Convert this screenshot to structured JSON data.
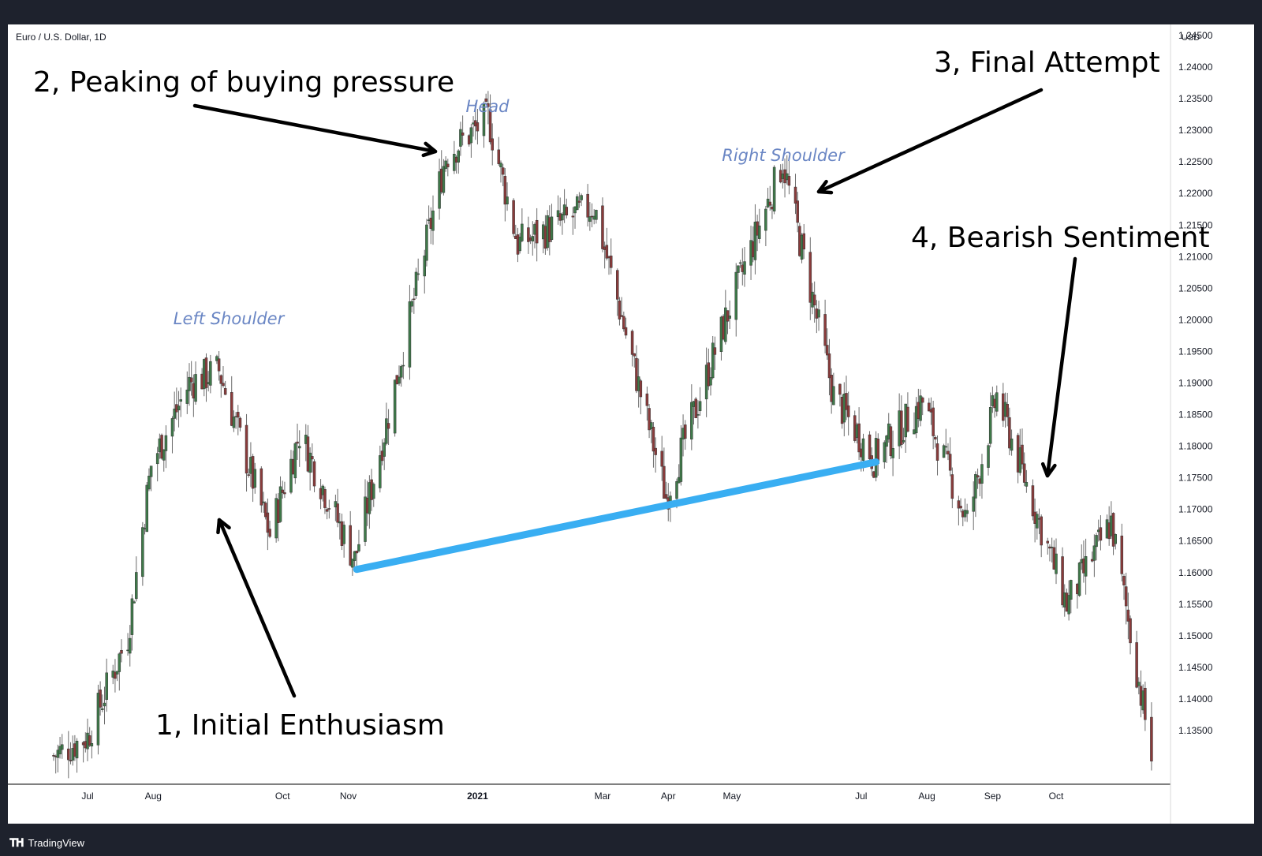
{
  "chart_data": {
    "type": "candlestick",
    "title": "Euro / U.S. Dollar, 1D",
    "currency_label": "USD",
    "ylim": [
      1.13,
      1.2475
    ],
    "y_ticks": [
      "1.24500",
      "1.24000",
      "1.23500",
      "1.23000",
      "1.22500",
      "1.22000",
      "1.21500",
      "1.21000",
      "1.20500",
      "1.20000",
      "1.19500",
      "1.19000",
      "1.18500",
      "1.18000",
      "1.17500",
      "1.17000",
      "1.16500",
      "1.16000",
      "1.15500",
      "1.15000",
      "1.14500",
      "1.14000",
      "1.13500"
    ],
    "x_ticks": [
      {
        "label": "Jul",
        "date": "2020-07"
      },
      {
        "label": "Aug",
        "date": "2020-08"
      },
      {
        "label": "Oct",
        "date": "2020-10"
      },
      {
        "label": "Nov",
        "date": "2020-11"
      },
      {
        "label": "2021",
        "date": "2021-01",
        "bold": true
      },
      {
        "label": "Mar",
        "date": "2021-03"
      },
      {
        "label": "Apr",
        "date": "2021-04"
      },
      {
        "label": "May",
        "date": "2021-05"
      },
      {
        "label": "Jul",
        "date": "2021-07"
      },
      {
        "label": "Aug",
        "date": "2021-08"
      },
      {
        "label": "Sep",
        "date": "2021-09"
      },
      {
        "label": "Oct",
        "date": "2021-10"
      }
    ],
    "series": [
      {
        "color_up": "#3f7a4a",
        "color_down": "#8a3b3b",
        "color_wick": "#6b6b6b",
        "approx_closes": [
          [
            "2020-06-15",
            1.131
          ],
          [
            "2020-07-01",
            1.134
          ],
          [
            "2020-07-20",
            1.15
          ],
          [
            "2020-07-31",
            1.177
          ],
          [
            "2020-08-18",
            1.19
          ],
          [
            "2020-09-01",
            1.192
          ],
          [
            "2020-09-25",
            1.166
          ],
          [
            "2020-10-09",
            1.182
          ],
          [
            "2020-11-04",
            1.162
          ],
          [
            "2020-11-20",
            1.185
          ],
          [
            "2020-12-17",
            1.226
          ],
          [
            "2021-01-06",
            1.232
          ],
          [
            "2021-01-20",
            1.212
          ],
          [
            "2021-02-25",
            1.218
          ],
          [
            "2021-03-31",
            1.172
          ],
          [
            "2021-04-30",
            1.202
          ],
          [
            "2021-05-25",
            1.225
          ],
          [
            "2021-06-18",
            1.188
          ],
          [
            "2021-07-07",
            1.178
          ],
          [
            "2021-07-30",
            1.187
          ],
          [
            "2021-08-20",
            1.168
          ],
          [
            "2021-09-03",
            1.188
          ],
          [
            "2021-10-06",
            1.155
          ],
          [
            "2021-10-27",
            1.168
          ],
          [
            "2021-11-15",
            1.131
          ]
        ]
      }
    ],
    "pattern_labels": {
      "left_shoulder": "Left Shoulder",
      "head": "Head",
      "right_shoulder": "Right Shoulder"
    },
    "neckline": {
      "from": {
        "date": "2020-11-05",
        "price": 1.1605
      },
      "to": {
        "date": "2021-07-08",
        "price": 1.1775
      },
      "color": "#39aef2"
    },
    "annotations": [
      {
        "text": "1, Initial Enthusiasm"
      },
      {
        "text": "2, Peaking of buying pressure"
      },
      {
        "text": "3, Final Attempt"
      },
      {
        "text": "4, Bearish Sentiment"
      }
    ]
  },
  "footer": {
    "brand": "TradingView"
  }
}
